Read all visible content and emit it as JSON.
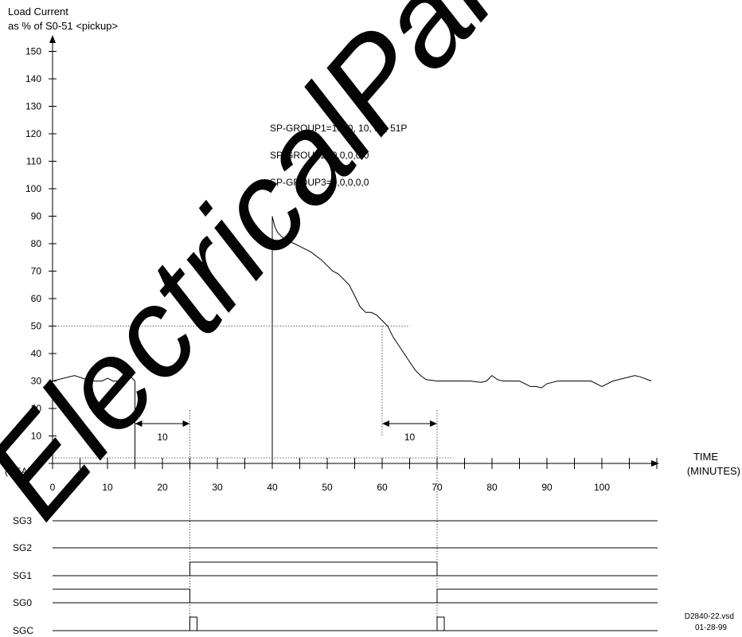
{
  "chart_data": {
    "type": "line",
    "ylabel_line1": "Load Current",
    "ylabel_line2": "as % of S0-51 <pickup>",
    "xlabel_line1": "TIME",
    "xlabel_line2": "(MINUTES)",
    "y_ticks": [
      0,
      10,
      20,
      30,
      40,
      50,
      60,
      70,
      80,
      90,
      100,
      110,
      120,
      130,
      140,
      150
    ],
    "y_zero_note": "(0.5A)",
    "x_ticks": [
      0,
      10,
      20,
      30,
      40,
      50,
      60,
      70,
      80,
      90,
      100
    ],
    "xlim": [
      0,
      110
    ],
    "ylim": [
      0,
      150
    ],
    "threshold": 50,
    "series": [
      {
        "values_x": [
          0,
          4,
          7,
          9,
          10,
          11,
          12,
          14,
          15
        ],
        "values_y": [
          30,
          32,
          30,
          30,
          31,
          30,
          30,
          32,
          30
        ]
      },
      {
        "values_x": [
          40,
          40.1,
          40.5,
          41,
          42,
          43,
          44,
          45,
          47,
          49,
          51,
          52,
          54,
          55,
          56,
          57,
          58,
          59,
          60,
          61,
          62,
          63,
          64,
          65,
          66,
          67,
          68,
          70,
          72,
          74,
          76,
          78,
          79,
          80,
          81,
          82,
          84,
          85,
          86,
          87,
          88,
          89,
          90,
          92,
          94,
          96,
          98,
          100,
          102,
          104,
          106,
          107,
          109
        ],
        "values_y": [
          90,
          89,
          86,
          84,
          82,
          81,
          80,
          79,
          77,
          74,
          70,
          69,
          65,
          61,
          57,
          55,
          55,
          54,
          52,
          50,
          46,
          43,
          40,
          37,
          34,
          32,
          30.5,
          30,
          30,
          30,
          30,
          29.5,
          30,
          32,
          30.5,
          30,
          30,
          30,
          29,
          28,
          28,
          27.5,
          29,
          30,
          30,
          30,
          30,
          28,
          30,
          31,
          32,
          31.5,
          30
        ]
      }
    ],
    "annotations": {
      "sp_group1": "SP-GROUP1=10, 0, 10, 50, 51P",
      "sp_group2": "SP-GROUP2=0,0,0,0,0",
      "sp_group3": "SP-GROUP3=0,0,0,0,0",
      "interval_left": {
        "from": 15,
        "to": 25,
        "label": "10"
      },
      "interval_right": {
        "from": 60,
        "to": 70,
        "label": "10"
      }
    },
    "signals": [
      {
        "name": "SG3",
        "high_intervals": []
      },
      {
        "name": "SG2",
        "high_intervals": []
      },
      {
        "name": "SG1",
        "high_intervals": [
          [
            25,
            70
          ]
        ]
      },
      {
        "name": "SG0",
        "high_intervals": [
          [
            0,
            25
          ],
          [
            70,
            110
          ]
        ]
      },
      {
        "name": "SGC",
        "pulses_at": [
          25,
          70
        ]
      }
    ]
  },
  "doc_id_line1": "D2840-22.vsd",
  "doc_id_line2": "01-28-99",
  "watermark": "ElectricalPartManuals"
}
